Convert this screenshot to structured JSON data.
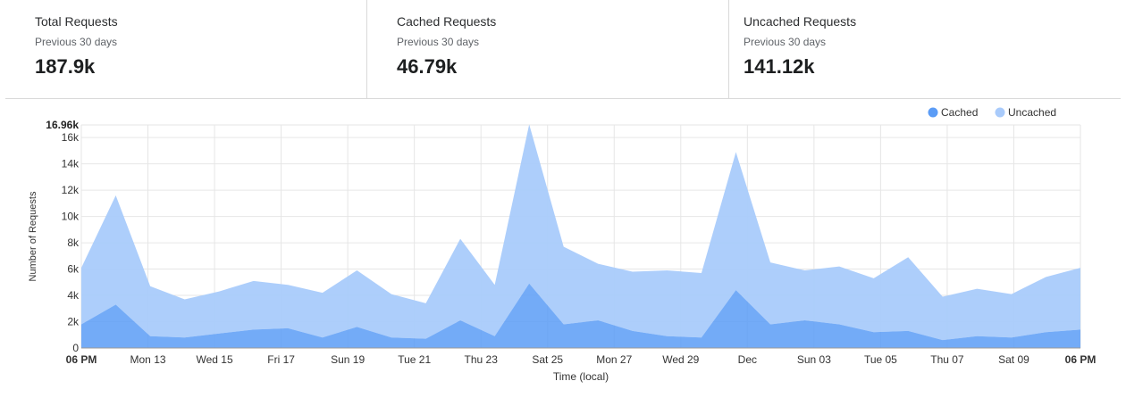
{
  "stats": [
    {
      "title": "Total Requests",
      "subtitle": "Previous 30 days",
      "value": "187.9k"
    },
    {
      "title": "Cached Requests",
      "subtitle": "Previous 30 days",
      "value": "46.79k"
    },
    {
      "title": "Uncached Requests",
      "subtitle": "Previous 30 days",
      "value": "141.12k"
    }
  ],
  "colors": {
    "cached": "#5b9cf6",
    "uncached": "#a9cbfb",
    "grid": "#e6e6e6"
  },
  "chart_data": {
    "type": "area",
    "stacked": true,
    "xlabel": "Time (local)",
    "ylabel": "Number of Requests",
    "ylim": [
      0,
      16960
    ],
    "ymax_label": "16.96k",
    "y_ticks": [
      0,
      2000,
      4000,
      6000,
      8000,
      10000,
      12000,
      14000,
      16000
    ],
    "y_tick_labels": [
      "0",
      "2k",
      "4k",
      "6k",
      "8k",
      "10k",
      "12k",
      "14k",
      "16k"
    ],
    "x_tick_labels": [
      "06 PM",
      "Mon 13",
      "Wed 15",
      "Fri 17",
      "Sun 19",
      "Tue 21",
      "Thu 23",
      "Sat 25",
      "Mon 27",
      "Wed 29",
      "Dec",
      "Sun 03",
      "Tue 05",
      "Thu 07",
      "Sat 09",
      "06 PM"
    ],
    "legend": [
      "Cached",
      "Uncached"
    ],
    "legend_position": "top-right",
    "grid": true,
    "series": [
      {
        "name": "Cached",
        "values": [
          1800,
          3300,
          900,
          800,
          1100,
          1400,
          1500,
          800,
          1600,
          800,
          700,
          2100,
          900,
          4900,
          1800,
          2100,
          1300,
          900,
          800,
          4400,
          1800,
          2100,
          1800,
          1200,
          1300,
          600,
          900,
          800,
          1200,
          1400
        ]
      },
      {
        "name": "Uncached",
        "values": [
          4300,
          8300,
          3800,
          2900,
          3200,
          3700,
          3300,
          3400,
          4300,
          3300,
          2700,
          6200,
          3900,
          12100,
          5900,
          4300,
          4500,
          5000,
          4900,
          10500,
          4700,
          3800,
          4400,
          4100,
          5600,
          3300,
          3600,
          3300,
          4200,
          4700
        ]
      }
    ]
  }
}
